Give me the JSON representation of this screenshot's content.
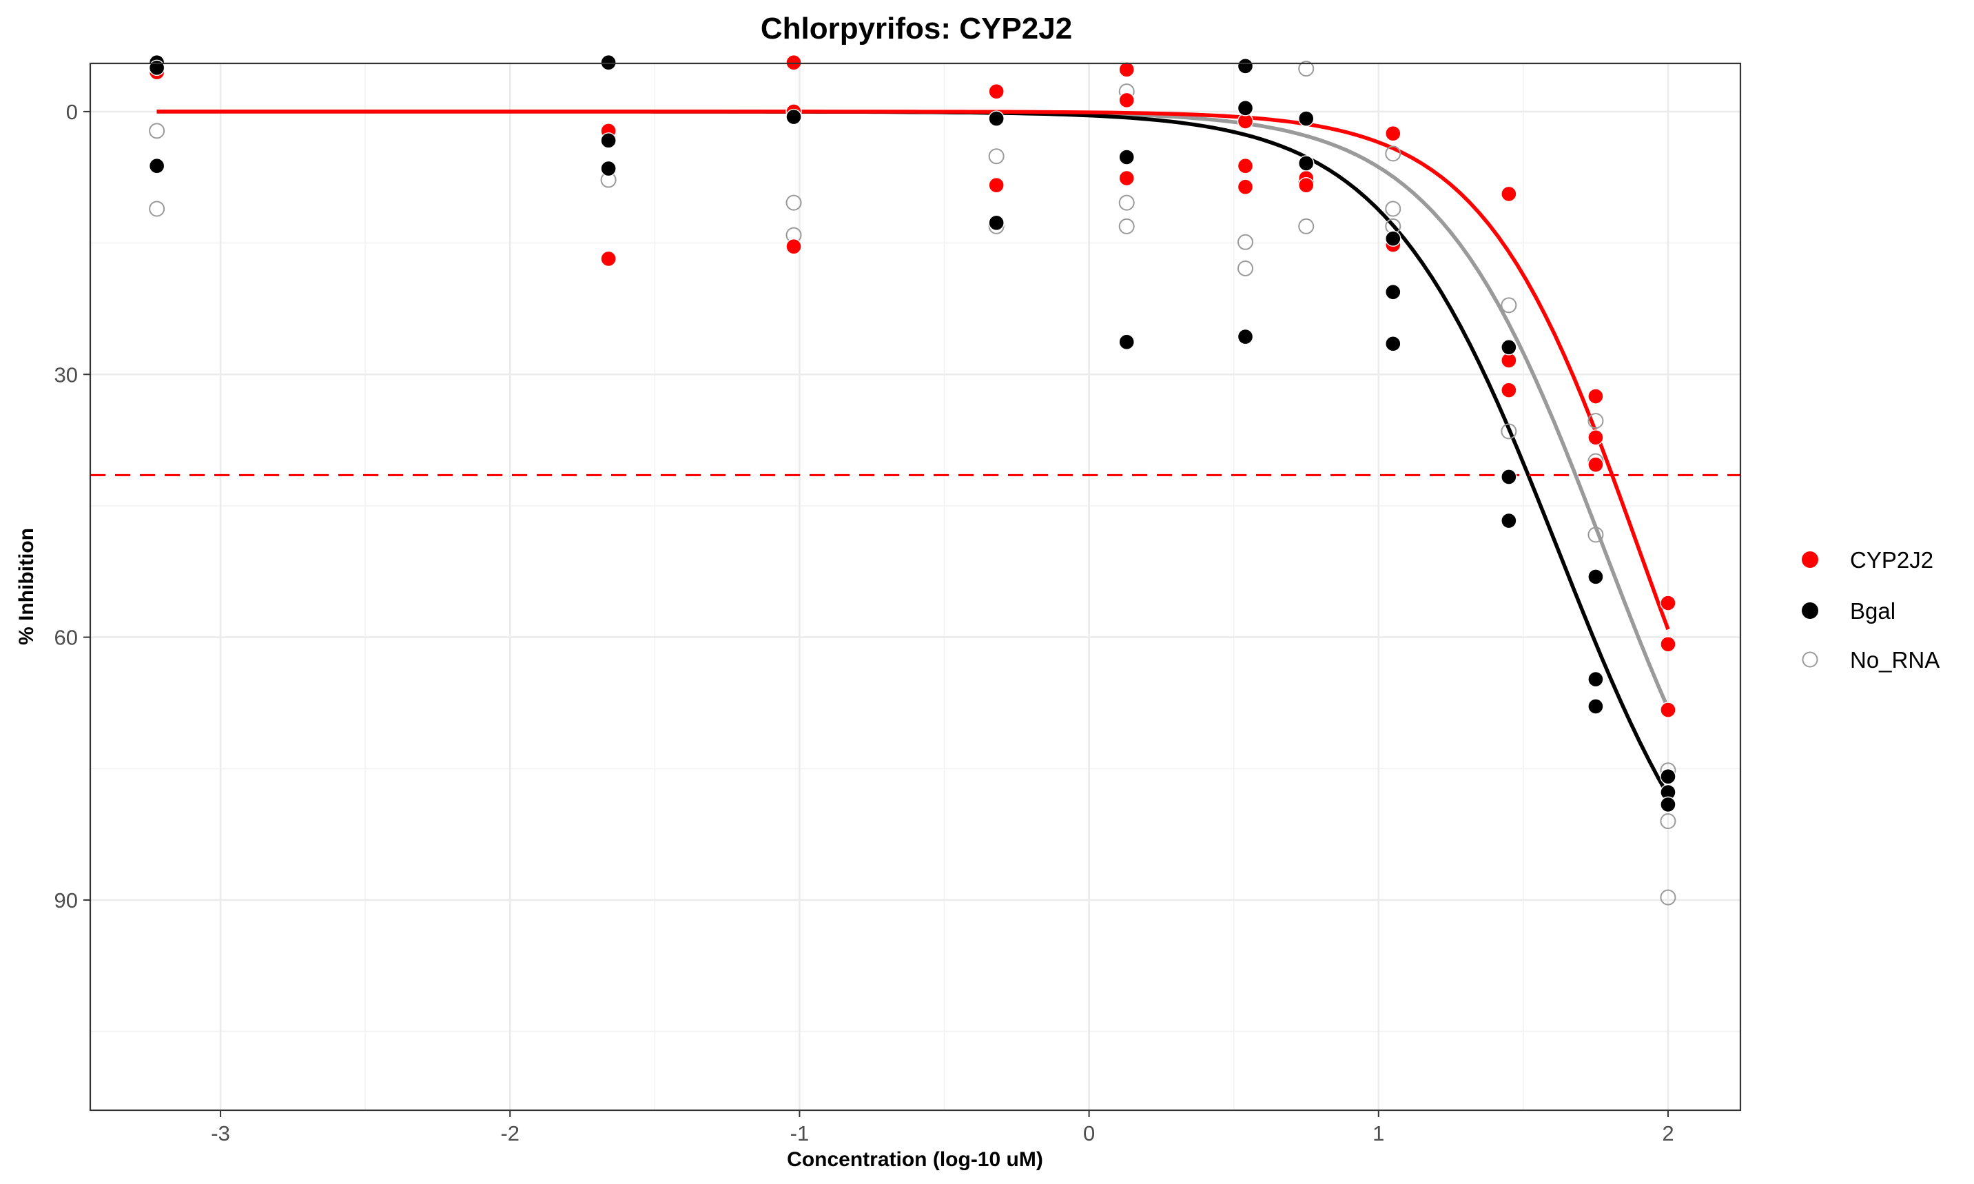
{
  "chart_data": {
    "type": "scatter",
    "title": "Chlorpyrifos: CYP2J2",
    "xlabel": "Concentration (log-10 uM)",
    "ylabel": "% Inhibition",
    "xlim": [
      -3.45,
      2.25
    ],
    "ylim": [
      -5.5,
      114
    ],
    "y_reversed": true,
    "x_ticks": [
      -3,
      -2,
      -1,
      0,
      1,
      2
    ],
    "x_tick_labels": [
      "-3",
      "-2",
      "-1",
      "0",
      "1",
      "2"
    ],
    "y_ticks": [
      0,
      30,
      60,
      90
    ],
    "y_tick_labels": [
      "0",
      "30",
      "60",
      "90"
    ],
    "grid": true,
    "legend_position": "right",
    "threshold_line": {
      "y": 41.5,
      "color": "#ff0000",
      "style": "dashed"
    },
    "series": [
      {
        "name": "CYP2J2",
        "color": "#ff0000",
        "marker": "filled-circle",
        "points": [
          [
            -3.22,
            -4.5
          ],
          [
            -1.66,
            2.2
          ],
          [
            -1.66,
            16.8
          ],
          [
            -1.02,
            -5.6
          ],
          [
            -1.02,
            0
          ],
          [
            -1.02,
            15.4
          ],
          [
            -0.32,
            -2.3
          ],
          [
            -0.32,
            8.4
          ],
          [
            0.13,
            -4.8
          ],
          [
            0.13,
            -1.3
          ],
          [
            0.13,
            7.6
          ],
          [
            0.54,
            1.1
          ],
          [
            0.54,
            6.2
          ],
          [
            0.54,
            8.6
          ],
          [
            0.75,
            7.6
          ],
          [
            0.75,
            8.4
          ],
          [
            1.05,
            2.5
          ],
          [
            1.05,
            15.2
          ],
          [
            1.45,
            9.4
          ],
          [
            1.45,
            28.4
          ],
          [
            1.45,
            31.8
          ],
          [
            1.75,
            32.5
          ],
          [
            1.75,
            37.2
          ],
          [
            1.75,
            40.3
          ],
          [
            2.0,
            56.1
          ],
          [
            2.0,
            60.8
          ],
          [
            2.0,
            68.3
          ]
        ],
        "fit": {
          "bottom": 0,
          "top": 100,
          "log_ic50": 1.9,
          "hill": 1.6
        }
      },
      {
        "name": "Bgal",
        "color": "#000000",
        "marker": "filled-circle",
        "points": [
          [
            -3.22,
            -5.6
          ],
          [
            -3.22,
            -5.0
          ],
          [
            -3.22,
            6.2
          ],
          [
            -1.66,
            -5.6
          ],
          [
            -1.66,
            3.3
          ],
          [
            -1.66,
            6.5
          ],
          [
            -1.02,
            0.6
          ],
          [
            -0.32,
            0.8
          ],
          [
            -0.32,
            12.7
          ],
          [
            0.13,
            5.2
          ],
          [
            0.13,
            26.3
          ],
          [
            0.54,
            -5.2
          ],
          [
            0.54,
            -0.4
          ],
          [
            0.54,
            25.7
          ],
          [
            0.75,
            0.8
          ],
          [
            0.75,
            5.9
          ],
          [
            1.05,
            14.5
          ],
          [
            1.05,
            20.6
          ],
          [
            1.05,
            26.5
          ],
          [
            1.45,
            26.9
          ],
          [
            1.45,
            41.7
          ],
          [
            1.45,
            46.7
          ],
          [
            1.75,
            53.1
          ],
          [
            1.75,
            64.8
          ],
          [
            1.75,
            67.9
          ],
          [
            2.0,
            75.9
          ],
          [
            2.0,
            77.7
          ],
          [
            2.0,
            79.1
          ]
        ],
        "fit": {
          "bottom": 0,
          "top": 100,
          "log_ic50": 1.62,
          "hill": 1.45
        }
      },
      {
        "name": "No_RNA",
        "color": "#9a9a9a",
        "marker": "open-circle",
        "points": [
          [
            -3.22,
            2.2
          ],
          [
            -3.22,
            11.1
          ],
          [
            -1.66,
            7.8
          ],
          [
            -1.02,
            10.4
          ],
          [
            -1.02,
            14.1
          ],
          [
            -0.32,
            5.1
          ],
          [
            -0.32,
            13.1
          ],
          [
            0.13,
            -2.3
          ],
          [
            0.13,
            10.4
          ],
          [
            0.13,
            13.1
          ],
          [
            0.54,
            14.9
          ],
          [
            0.54,
            17.9
          ],
          [
            0.75,
            -4.9
          ],
          [
            0.75,
            8.0
          ],
          [
            0.75,
            13.1
          ],
          [
            1.05,
            4.8
          ],
          [
            1.05,
            11.1
          ],
          [
            1.05,
            13.1
          ],
          [
            1.45,
            22.1
          ],
          [
            1.45,
            36.5
          ],
          [
            1.75,
            35.3
          ],
          [
            1.75,
            39.9
          ],
          [
            1.75,
            48.3
          ],
          [
            2.0,
            75.2
          ],
          [
            2.0,
            81.0
          ],
          [
            2.0,
            89.7
          ]
        ],
        "fit": {
          "bottom": 0,
          "top": 100,
          "log_ic50": 1.78,
          "hill": 1.5
        }
      }
    ]
  }
}
